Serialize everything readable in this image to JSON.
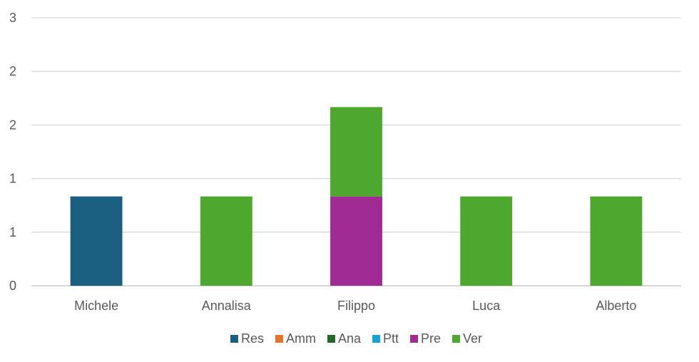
{
  "chart_data": {
    "type": "bar",
    "stacked": true,
    "categories": [
      "Michele",
      "Annalisa",
      "Filippo",
      "Luca",
      "Alberto"
    ],
    "y_tick_labels": [
      "0",
      "1",
      "1",
      "2",
      "2",
      "3"
    ],
    "ylim": [
      0,
      3
    ],
    "grid": true,
    "legend_position": "bottom",
    "series": [
      {
        "name": "Res",
        "color": "#1b5f80",
        "values": [
          1,
          0,
          0,
          0,
          0
        ]
      },
      {
        "name": "Amm",
        "color": "#e8722c",
        "values": [
          0,
          0,
          0,
          0,
          0
        ]
      },
      {
        "name": "Ana",
        "color": "#1e6b27",
        "values": [
          0,
          0,
          0,
          0,
          0
        ]
      },
      {
        "name": "Ptt",
        "color": "#13a3d6",
        "values": [
          0,
          0,
          0,
          0,
          0
        ]
      },
      {
        "name": "Pre",
        "color": "#a02b93",
        "values": [
          0,
          0,
          1,
          0,
          0
        ]
      },
      {
        "name": "Ver",
        "color": "#4ea72e",
        "values": [
          0,
          1,
          1,
          1,
          1
        ]
      }
    ]
  }
}
